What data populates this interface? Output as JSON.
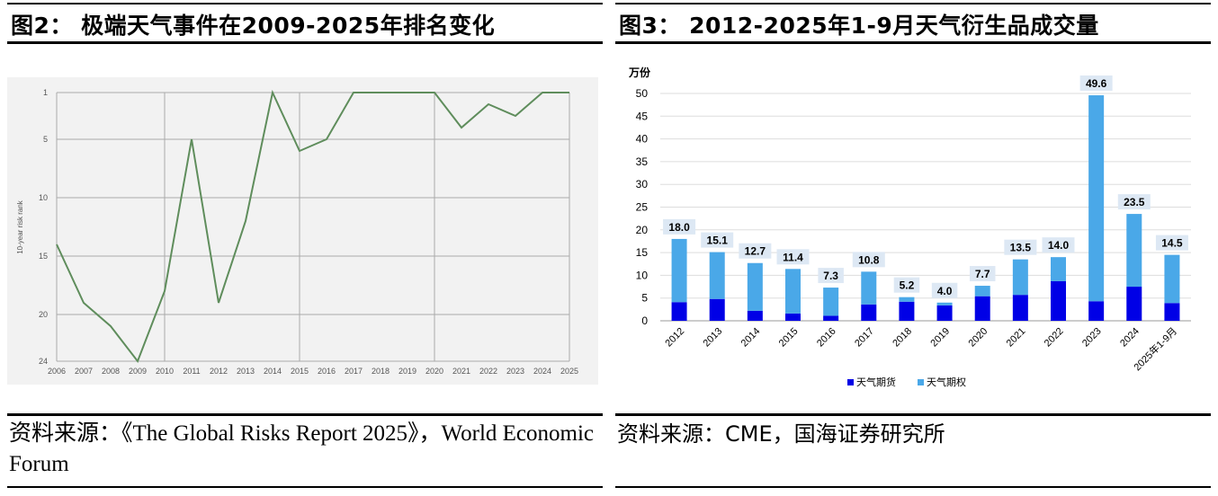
{
  "left": {
    "title": "图2： 极端天气事件在2009-2025年排名变化",
    "source": "资料来源：《The Global Risks Report 2025》，World Economic Forum",
    "chart_data": {
      "type": "line",
      "ylabel": "10-year risk rank",
      "ylim": [
        24,
        1
      ],
      "y_ticks": [
        1,
        5,
        10,
        15,
        20,
        24
      ],
      "x": [
        "2006",
        "2007",
        "2008",
        "2009",
        "2010",
        "2011",
        "2012",
        "2013",
        "2014",
        "2015",
        "2016",
        "2017",
        "2018",
        "2019",
        "2020",
        "2021",
        "2022",
        "2023",
        "2024",
        "2025"
      ],
      "values": [
        14,
        19,
        21,
        24,
        18,
        5,
        19,
        12,
        1,
        6,
        5,
        1,
        1,
        1,
        1,
        4,
        2,
        3,
        1,
        1
      ],
      "vertical_gridlines_at": [
        "2010",
        "2015",
        "2020"
      ],
      "line_color": "#5f8d5c"
    }
  },
  "right": {
    "title": "图3： 2012-2025年1-9月天气衍生品成交量",
    "source": "资料来源：CME，国海证券研究所",
    "chart_data": {
      "type": "bar",
      "stacked": true,
      "unit_label": "万份",
      "ylim": [
        0,
        50
      ],
      "y_ticks": [
        0,
        5,
        10,
        15,
        20,
        25,
        30,
        35,
        40,
        45,
        50
      ],
      "categories": [
        "2012",
        "2013",
        "2014",
        "2015",
        "2016",
        "2017",
        "2018",
        "2019",
        "2020",
        "2021",
        "2022",
        "2023",
        "2024",
        "2025年1-9月"
      ],
      "series": [
        {
          "name": "天气期货",
          "color": "#0000e6",
          "values": [
            4.1,
            4.8,
            2.2,
            1.6,
            1.1,
            3.6,
            4.2,
            3.4,
            5.4,
            5.7,
            8.7,
            4.3,
            7.5,
            3.9
          ]
        },
        {
          "name": "天气期权",
          "color": "#4aa8e8",
          "values": [
            13.9,
            10.3,
            10.5,
            9.8,
            6.2,
            7.2,
            1.0,
            0.6,
            2.3,
            7.8,
            5.3,
            45.3,
            16.0,
            10.6
          ]
        }
      ],
      "totals": [
        "18.0",
        "15.1",
        "12.7",
        "11.4",
        "7.3",
        "10.8",
        "5.2",
        "4.0",
        "7.7",
        "13.5",
        "14.0",
        "49.6",
        "23.5",
        "14.5"
      ],
      "legend_position": "bottom"
    }
  }
}
